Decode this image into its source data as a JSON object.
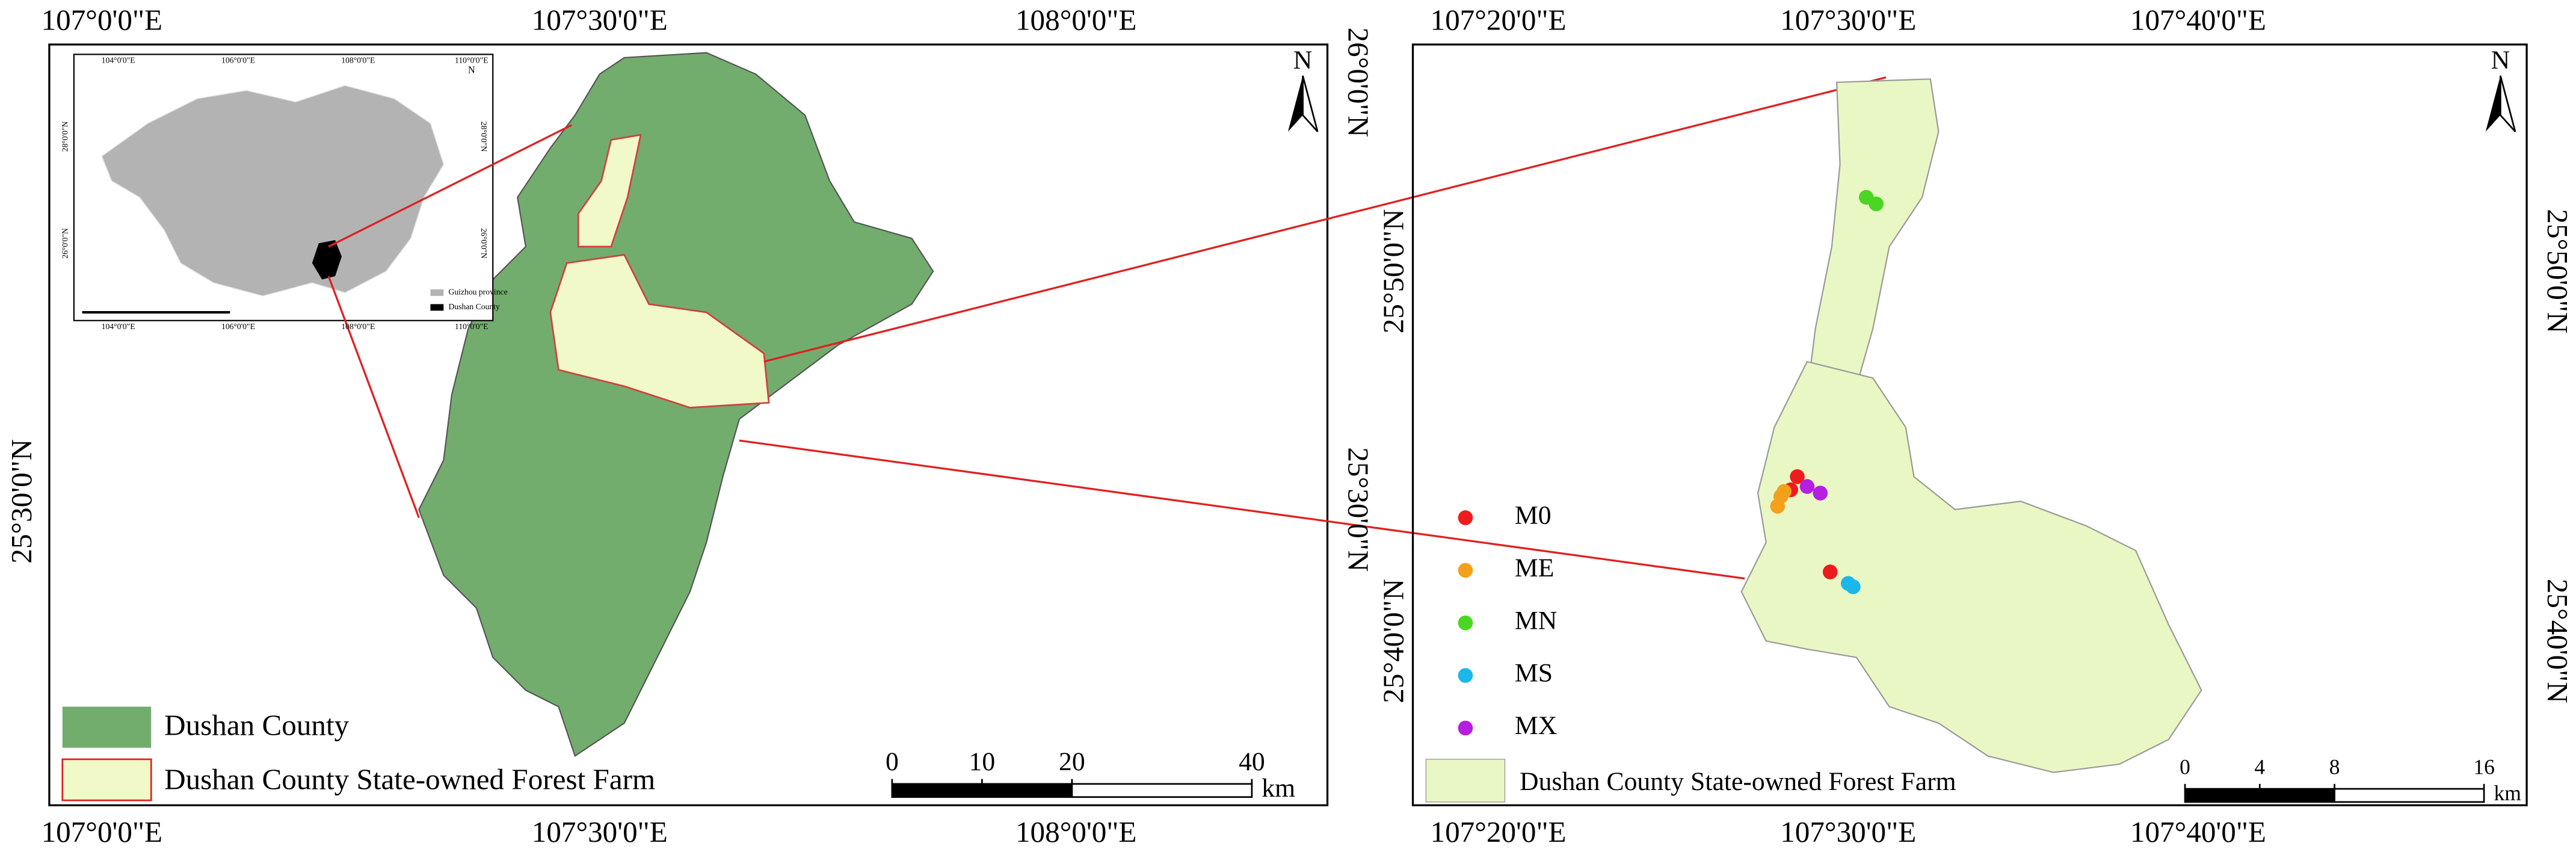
{
  "left_map": {
    "top_labels": [
      "107°0'0\"E",
      "107°30'0\"E",
      "108°0'0\"E"
    ],
    "bottom_labels": [
      "107°0'0\"E",
      "107°30'0\"E",
      "108°0'0\"E"
    ],
    "left_labels": [
      "25°30'0\"N"
    ],
    "right_labels": [
      "26°0'0\"N",
      "25°30'0\"N"
    ],
    "north": "N",
    "legend": [
      "Dushan County",
      "Dushan County State-owned Forest Farm"
    ],
    "scale_bar": {
      "ticks": [
        0,
        10,
        20,
        40
      ],
      "unit": "km"
    }
  },
  "inset": {
    "top_labels": [
      "104°0'0\"E",
      "106°0'0\"E",
      "108°0'0\"E",
      "110°0'0\"E"
    ],
    "bottom_labels": [
      "104°0'0\"E",
      "106°0'0\"E",
      "108°0'0\"E",
      "110°0'0\"E"
    ],
    "left_labels": [
      "28°0'0\"N",
      "26°0'0\"N"
    ],
    "right_labels": [
      "28°0'0\"N",
      "26°0'0\"N"
    ],
    "north": "N",
    "legend": [
      "Guizhou province",
      "Dushan County"
    ]
  },
  "right_map": {
    "top_labels": [
      "107°20'0\"E",
      "107°30'0\"E",
      "107°40'0\"E"
    ],
    "bottom_labels": [
      "107°20'0\"E",
      "107°30'0\"E",
      "107°40'0\"E"
    ],
    "left_labels": [
      "25°50'0\"N",
      "25°40'0\"N"
    ],
    "right_labels": [
      "25°50'0\"N",
      "25°40'0\"N"
    ],
    "north": "N",
    "samples": [
      {
        "name": "M0",
        "color": "#ee1c1c"
      },
      {
        "name": "ME",
        "color": "#f5a01a"
      },
      {
        "name": "MN",
        "color": "#4bd623"
      },
      {
        "name": "MS",
        "color": "#1ab8ea"
      },
      {
        "name": "MX",
        "color": "#b51fe0"
      }
    ],
    "legend": "Dushan County State-owned Forest Farm",
    "scale_bar": {
      "ticks": [
        0,
        4,
        8,
        16
      ],
      "unit": "km"
    }
  }
}
